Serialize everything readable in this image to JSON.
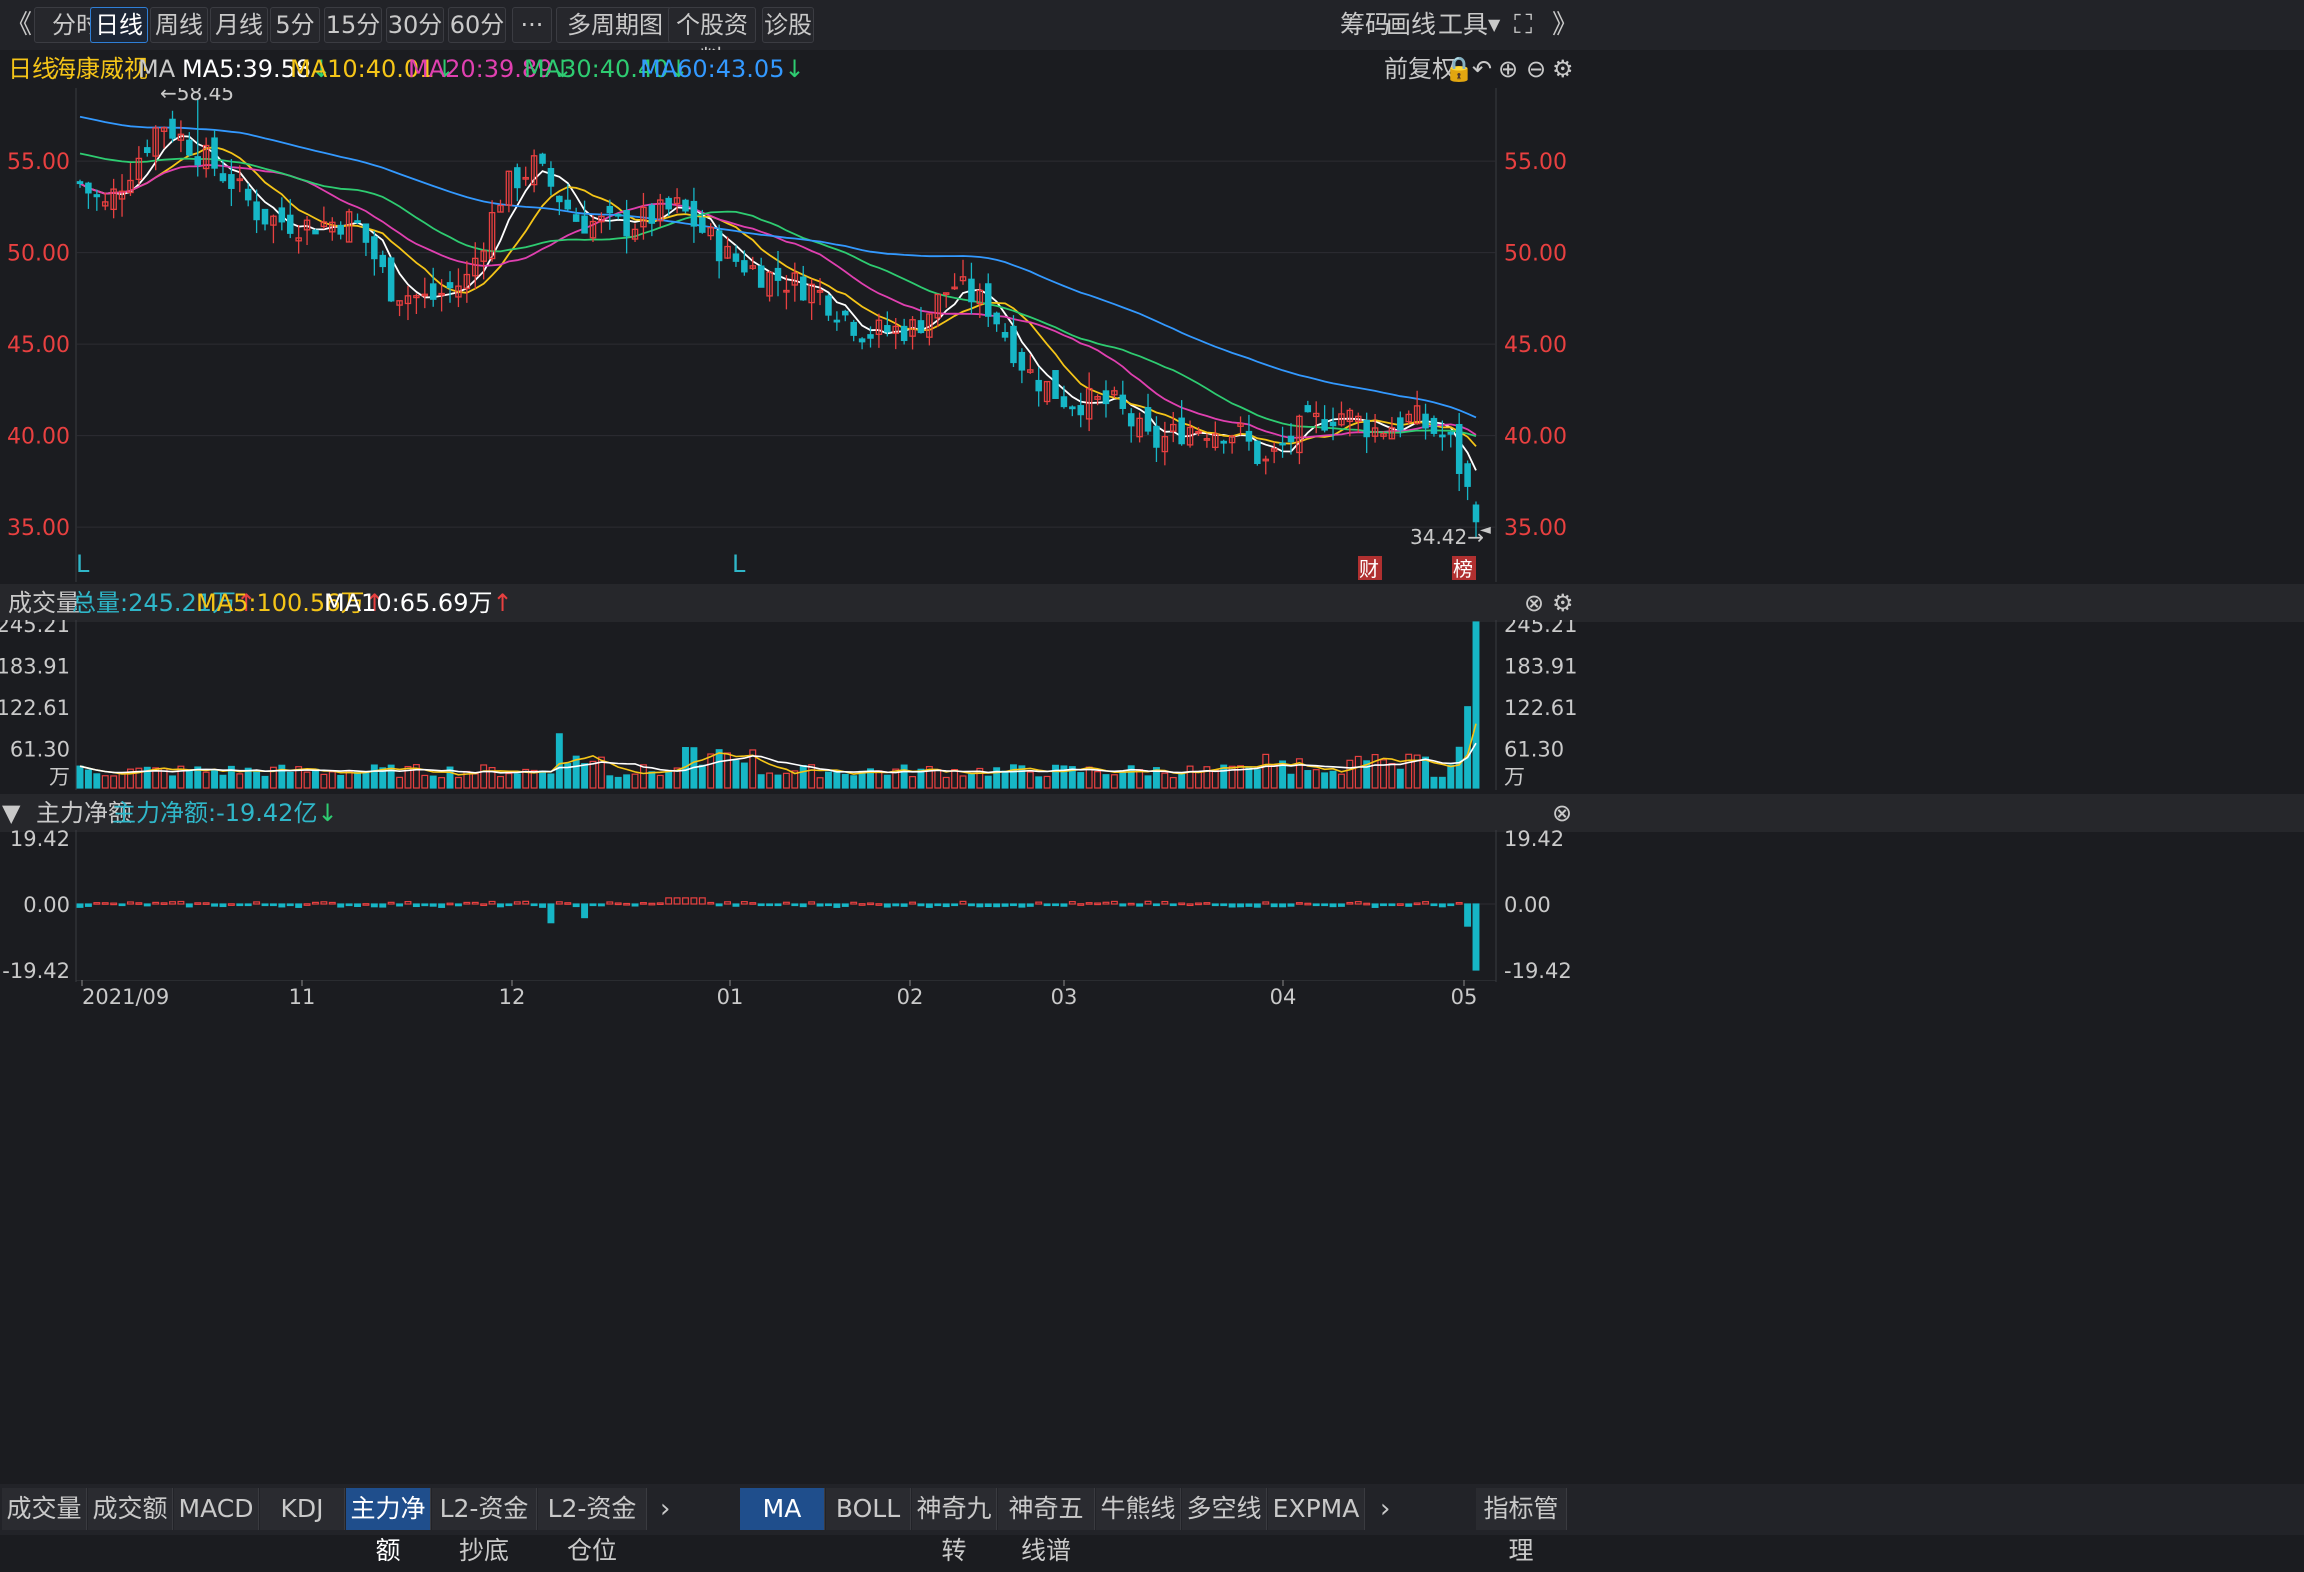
{
  "toolbar": {
    "back_glyph": "《",
    "periods": [
      "分时",
      "日线",
      "周线",
      "月线",
      "5分",
      "15分",
      "30分",
      "60分",
      "···",
      "多周期图",
      "个股资料",
      "诊股"
    ],
    "active_period": "日线",
    "right_items": [
      "筹码",
      "画线",
      "工具"
    ]
  },
  "ma_bar": {
    "period": "日线",
    "stock_name": "海康威视",
    "indicator": "MA",
    "ma5": "MA5:39.58",
    "ma10": "MA10:40.01",
    "ma20": "MA20:39.89",
    "ma30": "MA30:40.40",
    "ma60": "MA60:43.05",
    "adjust": "前复权",
    "colors": {
      "ma5": "#ffffff",
      "ma10": "#f5c518",
      "ma20": "#e040b0",
      "ma30": "#2ecc71",
      "ma60": "#3399ff"
    }
  },
  "price_panel": {
    "y_ticks": [
      "55.00",
      "50.00",
      "45.00",
      "40.00",
      "35.00"
    ],
    "high_label": "←58.45",
    "low_label": "34.42→",
    "markers": [
      "L",
      "L"
    ],
    "badges": [
      "财",
      "榜"
    ]
  },
  "volume_panel": {
    "title": "成交量",
    "total": "总量:245.21万",
    "ma5": "MA5:100.56万",
    "ma10": "MA10:65.69万",
    "y_ticks": [
      "245.21",
      "183.91",
      "122.61",
      "61.30",
      "万"
    ]
  },
  "flow_panel": {
    "title": "主力净额",
    "value": "主力净额:-19.42亿",
    "y_ticks": [
      "19.42",
      "0.00",
      "-19.42"
    ]
  },
  "x_axis": [
    "2021/09",
    "11",
    "12",
    "01",
    "02",
    "03",
    "04",
    "05"
  ],
  "bottom_tabs_left": [
    "成交量",
    "成交额",
    "MACD",
    "KDJ",
    "主力净额",
    "L2-资金抄底",
    "L2-资金仓位"
  ],
  "bottom_tabs_right": [
    "MA",
    "BOLL",
    "神奇九转",
    "神奇五线谱",
    "牛熊线",
    "多空线",
    "EXPMA"
  ],
  "bottom_active_left": "主力净额",
  "bottom_active_right": "MA",
  "index_manage": "指标管理",
  "chart_data": {
    "type": "candlestick",
    "ylim": [
      32.0,
      59.0
    ],
    "x_start": "2021-09-01",
    "x_end": "2022-05-05",
    "price_high": 58.45,
    "price_low": 34.42,
    "last_close_ma": {
      "MA5": 39.58,
      "MA10": 40.01,
      "MA20": 39.89,
      "MA30": 40.4,
      "MA60": 43.05
    },
    "volume_max": 245.21,
    "flow_last": -19.42
  }
}
